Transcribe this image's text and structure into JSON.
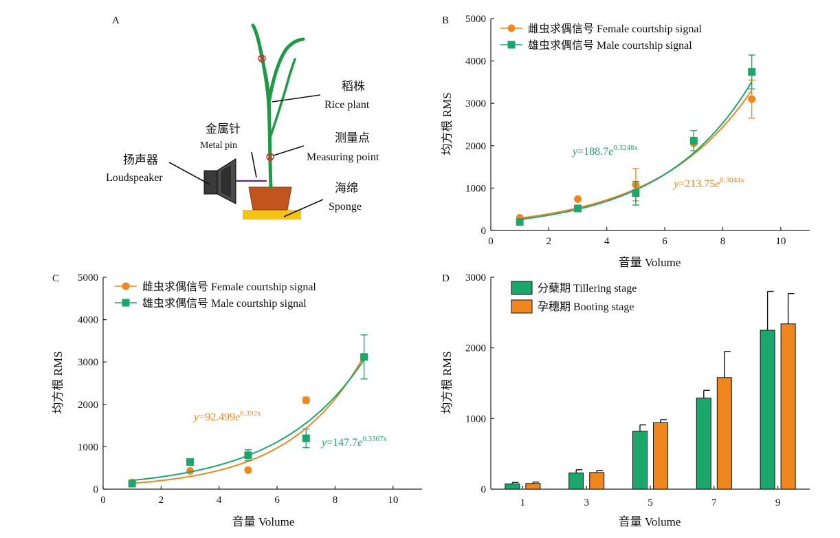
{
  "colors": {
    "female": "#F0861E",
    "male": "#1BA66B",
    "tillering": "#1BA66B",
    "booting": "#F0861E",
    "plant": "#1E9A46",
    "pot": "#C2541E",
    "sponge": "#F2C418",
    "speaker": "#3A3A3A",
    "pin": "#5B2A8C",
    "marker": "#D42A2A"
  },
  "panel_a": {
    "letter": "A",
    "labels": {
      "rice_plant_zh": "稻株",
      "rice_plant_en": "Rice plant",
      "metal_pin_zh": "金属针",
      "metal_pin_en": "Metal pin",
      "measuring_point_zh": "测量点",
      "measuring_point_en": "Measuring point",
      "loudspeaker_zh": "扬声器",
      "loudspeaker_en": "Loudspeaker",
      "sponge_zh": "海绵",
      "sponge_en": "Sponge"
    },
    "icons": [
      "loudspeaker-icon",
      "rice-plant-icon",
      "pot-icon",
      "sponge-icon",
      "measuring-point-icon"
    ]
  },
  "chart_data": [
    {
      "panel": "B",
      "type": "scatter",
      "xlabel": "音量 Volume",
      "ylabel": "均方根 RMS",
      "xlim": [
        0,
        11
      ],
      "ylim": [
        0,
        5000
      ],
      "xticks": [
        0,
        2,
        4,
        6,
        8,
        10
      ],
      "yticks": [
        0,
        1000,
        2000,
        3000,
        4000,
        5000
      ],
      "grid": false,
      "legend_position": "top-left",
      "series": [
        {
          "name": "雌虫求偶信号 Female courtship signal",
          "color_key": "female",
          "marker": "circle",
          "x": [
            1,
            3,
            5,
            7,
            9
          ],
          "y": [
            300,
            740,
            1080,
            2060,
            3100
          ],
          "err": [
            0,
            0,
            380,
            0,
            450
          ],
          "fit": {
            "a": 213.75,
            "b": 0.3044
          },
          "equation": {
            "prefix": "y",
            "eq": "=213.75",
            "base": "e",
            "exp": "0.3044x"
          }
        },
        {
          "name": "雄虫求偶信号 Male courtship signal",
          "color_key": "male",
          "marker": "square",
          "x": [
            1,
            3,
            5,
            7,
            9
          ],
          "y": [
            200,
            520,
            880,
            2120,
            3740
          ],
          "err": [
            0,
            0,
            280,
            240,
            400
          ],
          "fit": {
            "a": 188.7,
            "b": 0.3248
          },
          "equation": {
            "prefix": "y",
            "eq": "=188.7",
            "base": "e",
            "exp": "0.3248x"
          }
        }
      ]
    },
    {
      "panel": "C",
      "type": "scatter",
      "xlabel": "音量 Volume",
      "ylabel": "均方根 RMS",
      "xlim": [
        0,
        11
      ],
      "ylim": [
        0,
        5000
      ],
      "xticks": [
        0,
        2,
        4,
        6,
        8,
        10
      ],
      "yticks": [
        0,
        1000,
        2000,
        3000,
        4000,
        5000
      ],
      "grid": false,
      "legend_position": "top-left",
      "series": [
        {
          "name": "雌虫求偶信号 Female courtship signal",
          "color_key": "female",
          "marker": "circle",
          "x": [
            1,
            3,
            5,
            7,
            9
          ],
          "y": [
            160,
            430,
            450,
            2100,
            3120
          ],
          "err": [
            0,
            0,
            0,
            70,
            0
          ],
          "fit": {
            "a": 92.499,
            "b": 0.392
          },
          "equation": {
            "prefix": "y",
            "eq": "=92.499",
            "base": "e",
            "exp": "0.392x"
          }
        },
        {
          "name": "雄虫求偶信号 Male courtship signal",
          "color_key": "male",
          "marker": "square",
          "x": [
            1,
            3,
            5,
            7,
            9
          ],
          "y": [
            130,
            640,
            800,
            1200,
            3120
          ],
          "err": [
            0,
            0,
            130,
            220,
            520
          ],
          "fit": {
            "a": 147.7,
            "b": 0.3367
          },
          "equation": {
            "prefix": "y",
            "eq": "=147.7",
            "base": "e",
            "exp": "0.3367x"
          }
        }
      ]
    },
    {
      "panel": "D",
      "type": "bar",
      "xlabel": "音量 Volume",
      "ylabel": "均方根 RMS",
      "categories": [
        "1",
        "3",
        "5",
        "7",
        "9"
      ],
      "ylim": [
        0,
        3000
      ],
      "yticks": [
        0,
        1000,
        2000,
        3000
      ],
      "grid": false,
      "legend_position": "top-left",
      "series": [
        {
          "name": "分蘖期 Tillering stage",
          "color_key": "tillering",
          "values": [
            75,
            230,
            820,
            1290,
            2250
          ],
          "err": [
            20,
            45,
            90,
            110,
            550
          ]
        },
        {
          "name": "孕穗期 Booting stage",
          "color_key": "booting",
          "values": [
            80,
            235,
            940,
            1580,
            2340
          ],
          "err": [
            20,
            30,
            45,
            370,
            430
          ]
        }
      ]
    }
  ]
}
